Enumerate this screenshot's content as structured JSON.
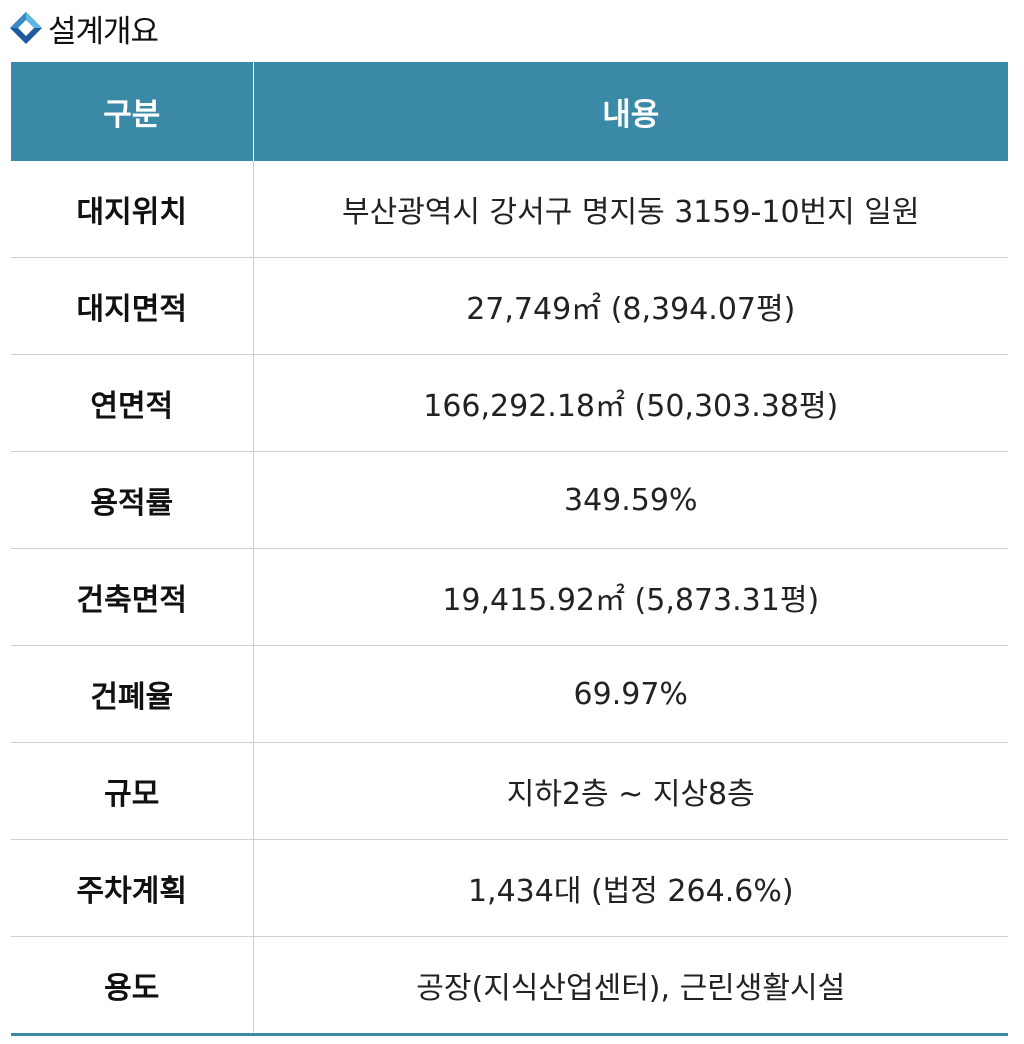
{
  "header": {
    "title": "설계개요",
    "icon": "diamond-icon",
    "accent_color": "#3a89a6",
    "icon_light_color": "#5bb8e0",
    "icon_dark_color": "#1f5a9e"
  },
  "table": {
    "columns": [
      "구분",
      "내용"
    ],
    "rows": [
      {
        "label": "대지위치",
        "value": "부산광역시 강서구 명지동 3159-10번지 일원"
      },
      {
        "label": "대지면적",
        "value": "27,749㎡ (8,394.07평)"
      },
      {
        "label": "연면적",
        "value": "166,292.18㎡ (50,303.38평)"
      },
      {
        "label": "용적률",
        "value": "349.59%"
      },
      {
        "label": "건축면적",
        "value": "19,415.92㎡ (5,873.31평)"
      },
      {
        "label": "건폐율",
        "value": "69.97%"
      },
      {
        "label": "규모",
        "value": "지하2층 ~ 지상8층"
      },
      {
        "label": "주차계획",
        "value": "1,434대 (법정 264.6%)"
      },
      {
        "label": "용도",
        "value": "공장(지식산업센터), 근린생활시설"
      }
    ]
  }
}
